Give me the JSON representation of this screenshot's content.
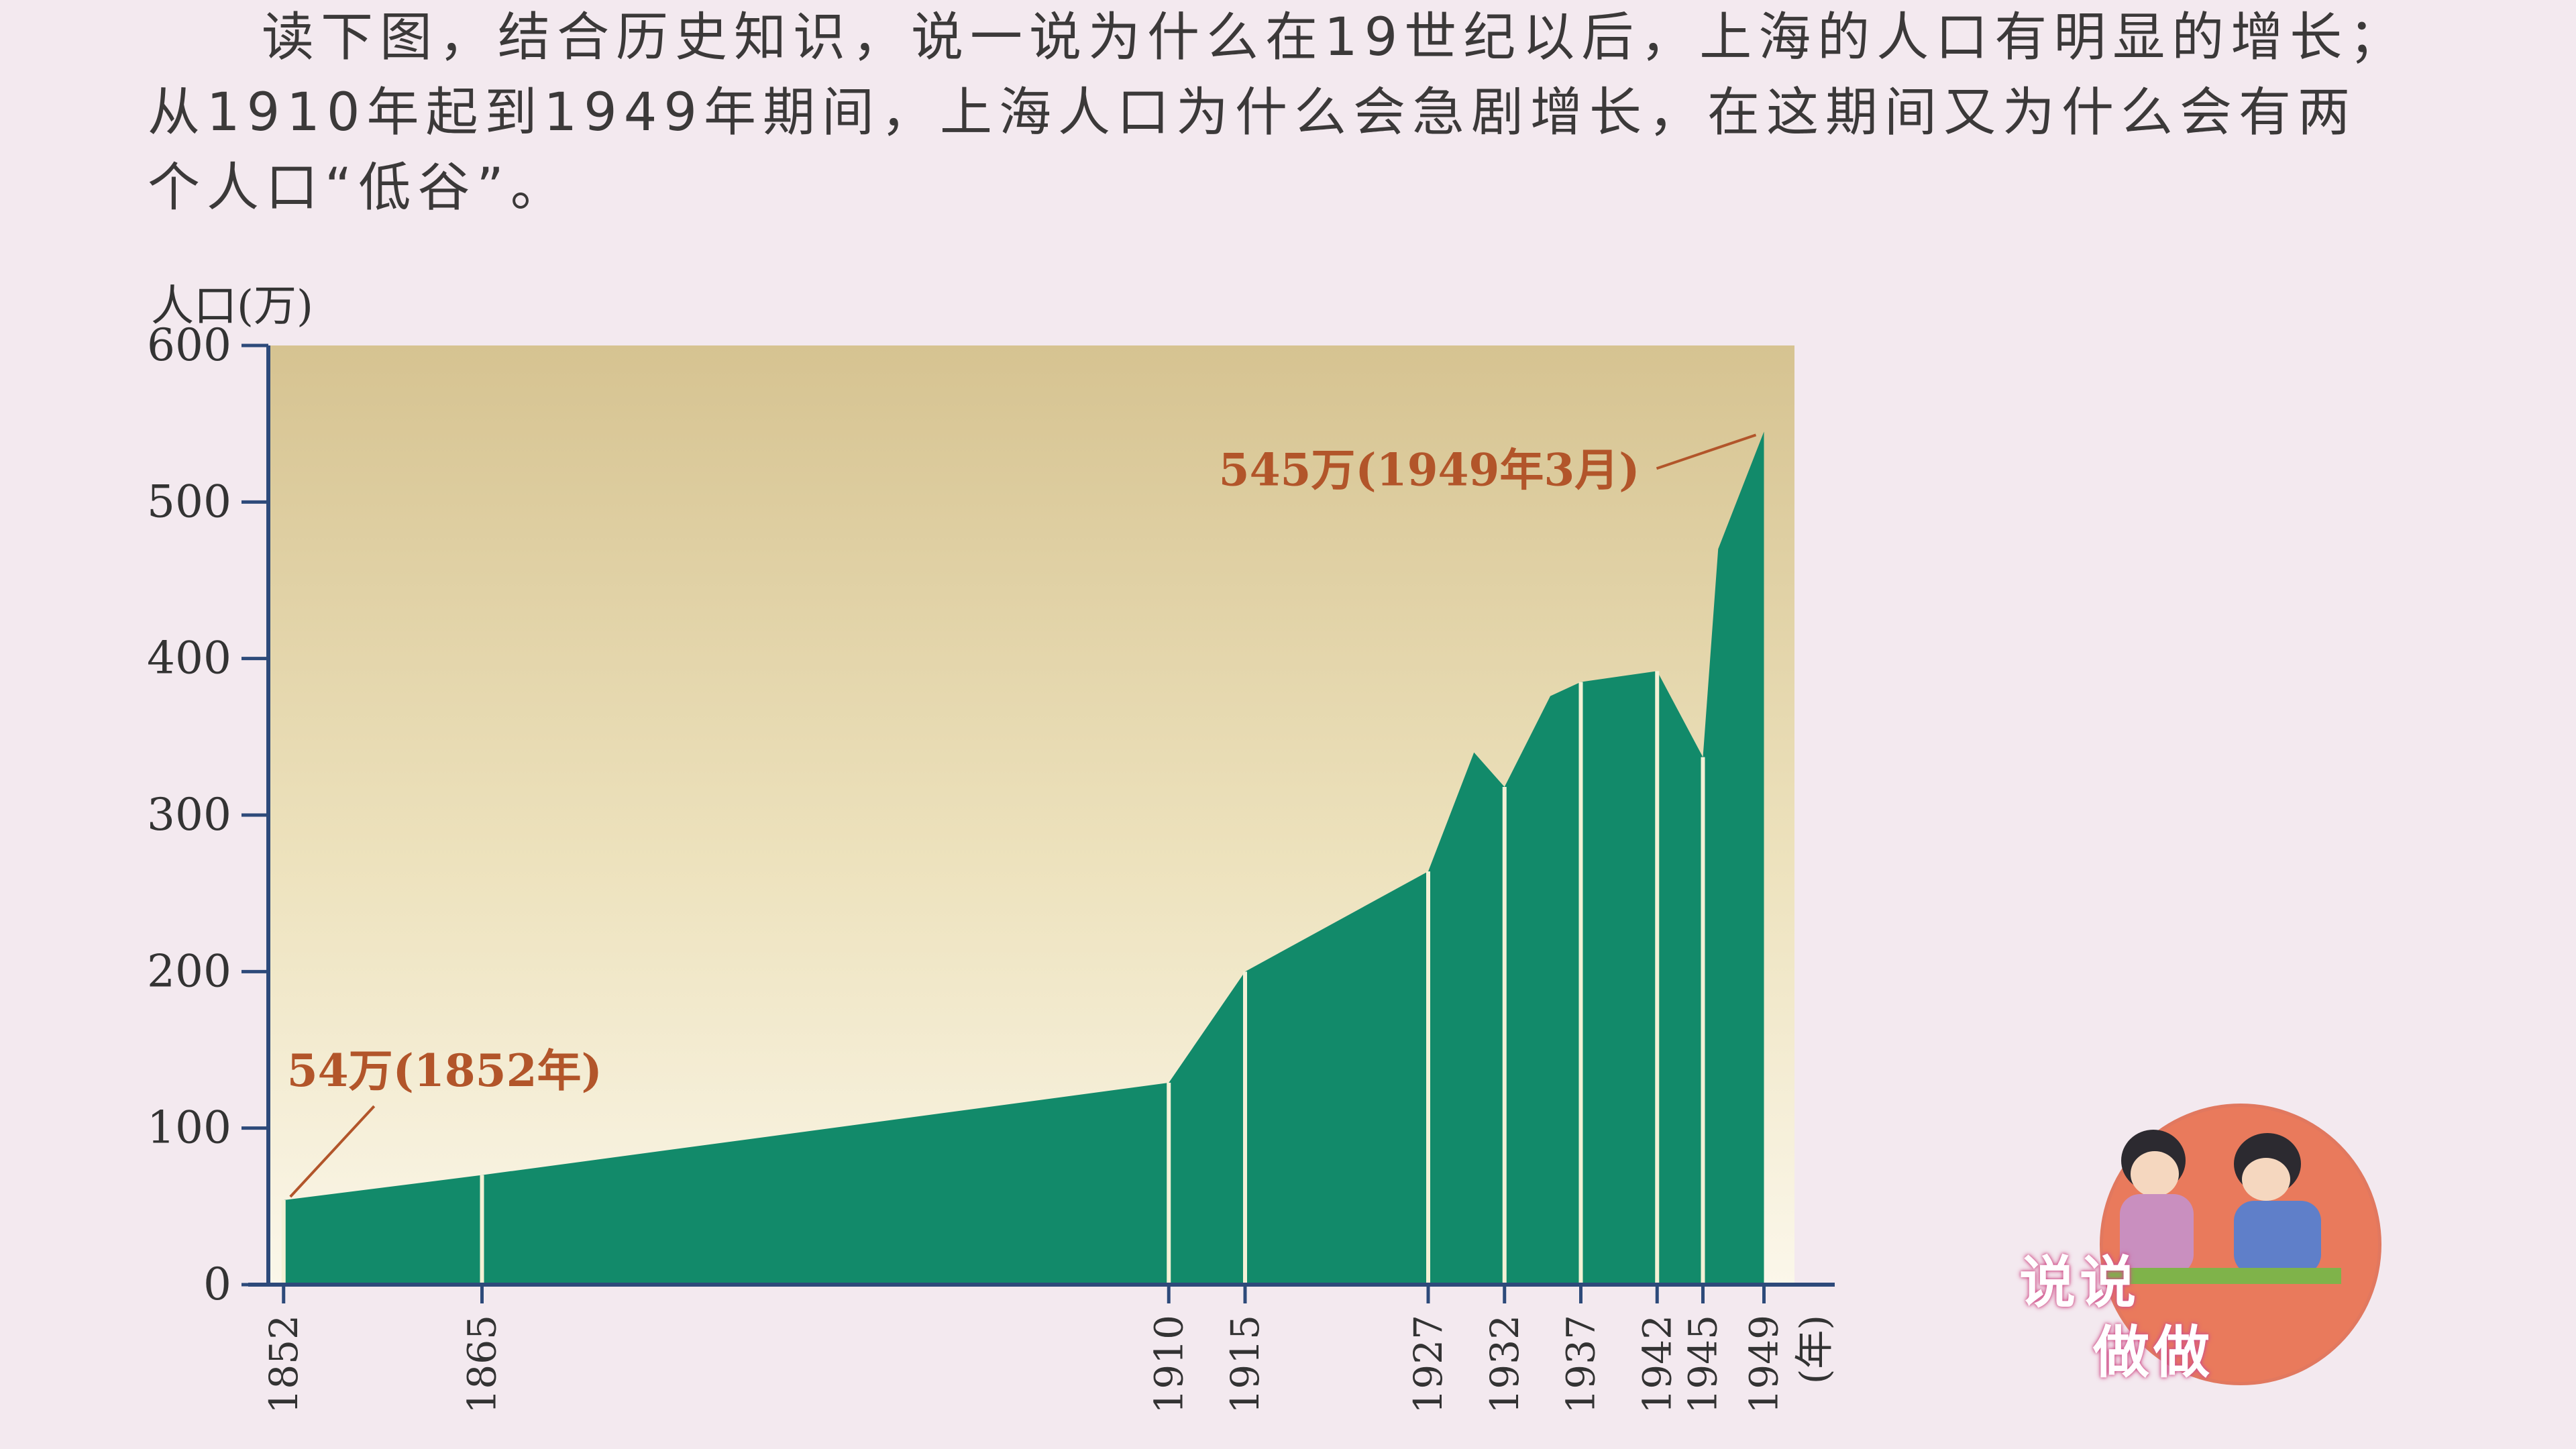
{
  "question": {
    "text": "读下图，结合历史知识，说一说为什么在19世纪以后，上海的人口有明显的增长；从1910年起到1949年期间，上海人口为什么会急剧增长，在这期间又为什么会有两个人口“低谷”。"
  },
  "chart_data": {
    "type": "area",
    "ylabel": "人口(万)",
    "xlabel": "(年)",
    "ylim": [
      0,
      600
    ],
    "yticks": [
      0,
      100,
      200,
      300,
      400,
      500,
      600
    ],
    "x_ticks": [
      1852,
      1865,
      1910,
      1915,
      1927,
      1932,
      1937,
      1942,
      1945,
      1949
    ],
    "x_range": [
      1851,
      1951
    ],
    "series": [
      {
        "points": [
          {
            "x": 1852,
            "y": 54
          },
          {
            "x": 1865,
            "y": 70
          },
          {
            "x": 1910,
            "y": 129
          },
          {
            "x": 1915,
            "y": 200
          },
          {
            "x": 1927,
            "y": 264
          },
          {
            "x": 1930,
            "y": 340
          },
          {
            "x": 1932,
            "y": 318
          },
          {
            "x": 1935,
            "y": 376
          },
          {
            "x": 1937,
            "y": 385
          },
          {
            "x": 1942,
            "y": 392
          },
          {
            "x": 1945,
            "y": 337
          },
          {
            "x": 1946,
            "y": 470
          },
          {
            "x": 1949,
            "y": 545
          }
        ]
      }
    ],
    "annotations": [
      {
        "text": "54万(1852年)",
        "x": 1852,
        "y": 54
      },
      {
        "text": "545万(1949年3月)",
        "x": 1949,
        "y": 545
      }
    ],
    "grid": false,
    "colors": {
      "fill": "#128a6a",
      "background_top": "#d6c391",
      "background_bottom": "#fbf7ea",
      "annotation": "#b2552a"
    }
  },
  "mascot": {
    "label_line1": "说说",
    "label_line2": "做做",
    "icon": "two-children-reading-icon"
  }
}
